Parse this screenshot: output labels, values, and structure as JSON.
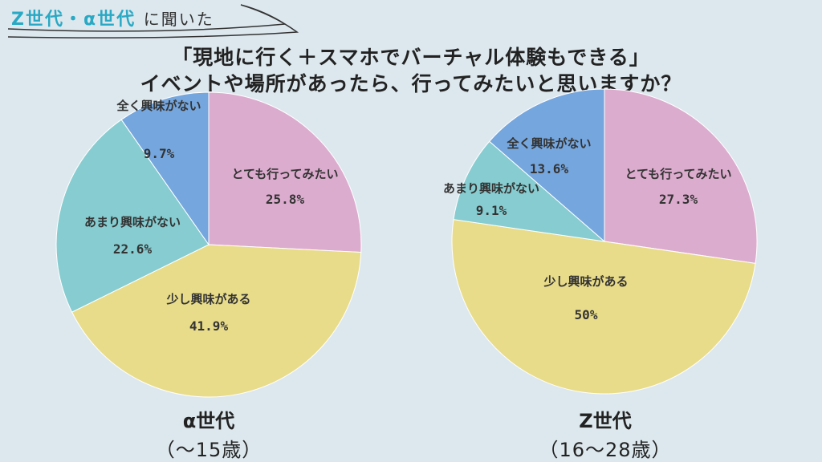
{
  "header": {
    "tag_accent": "Z世代・α世代",
    "tag_plain": "に聞いた",
    "question_line1": "「現地に行く＋スマホでバーチャル体験もできる」",
    "question_line2": "イベントや場所があったら、行ってみたいと思いますか？"
  },
  "colors": {
    "very_want": "#dcaccf",
    "somewhat": "#e8dc8a",
    "not_much": "#86ccd0",
    "not_at_all": "#75a6dd",
    "background": "#dde8ee",
    "accent": "#2aa9c4"
  },
  "chart_data": [
    {
      "type": "pie",
      "title": "α世代",
      "subtitle": "（〜15歳）",
      "slices": [
        {
          "label": "とても行ってみたい",
          "value": 25.8,
          "display": "25.8%",
          "color": "#dcaccf"
        },
        {
          "label": "少し興味がある",
          "value": 41.9,
          "display": "41.9%",
          "color": "#e8dc8a"
        },
        {
          "label": "あまり興味がない",
          "value": 22.6,
          "display": "22.6%",
          "color": "#86ccd0"
        },
        {
          "label": "全く興味がない",
          "value": 9.7,
          "display": "9.7%",
          "color": "#75a6dd"
        }
      ]
    },
    {
      "type": "pie",
      "title": "Z世代",
      "subtitle": "（16〜28歳）",
      "slices": [
        {
          "label": "とても行ってみたい",
          "value": 27.3,
          "display": "27.3%",
          "color": "#dcaccf"
        },
        {
          "label": "少し興味がある",
          "value": 50,
          "display": "50%",
          "color": "#e8dc8a"
        },
        {
          "label": "あまり興味がない",
          "value": 9.1,
          "display": "9.1%",
          "color": "#86ccd0"
        },
        {
          "label": "全く興味がない",
          "value": 13.6,
          "display": "13.6%",
          "color": "#75a6dd"
        }
      ]
    }
  ]
}
